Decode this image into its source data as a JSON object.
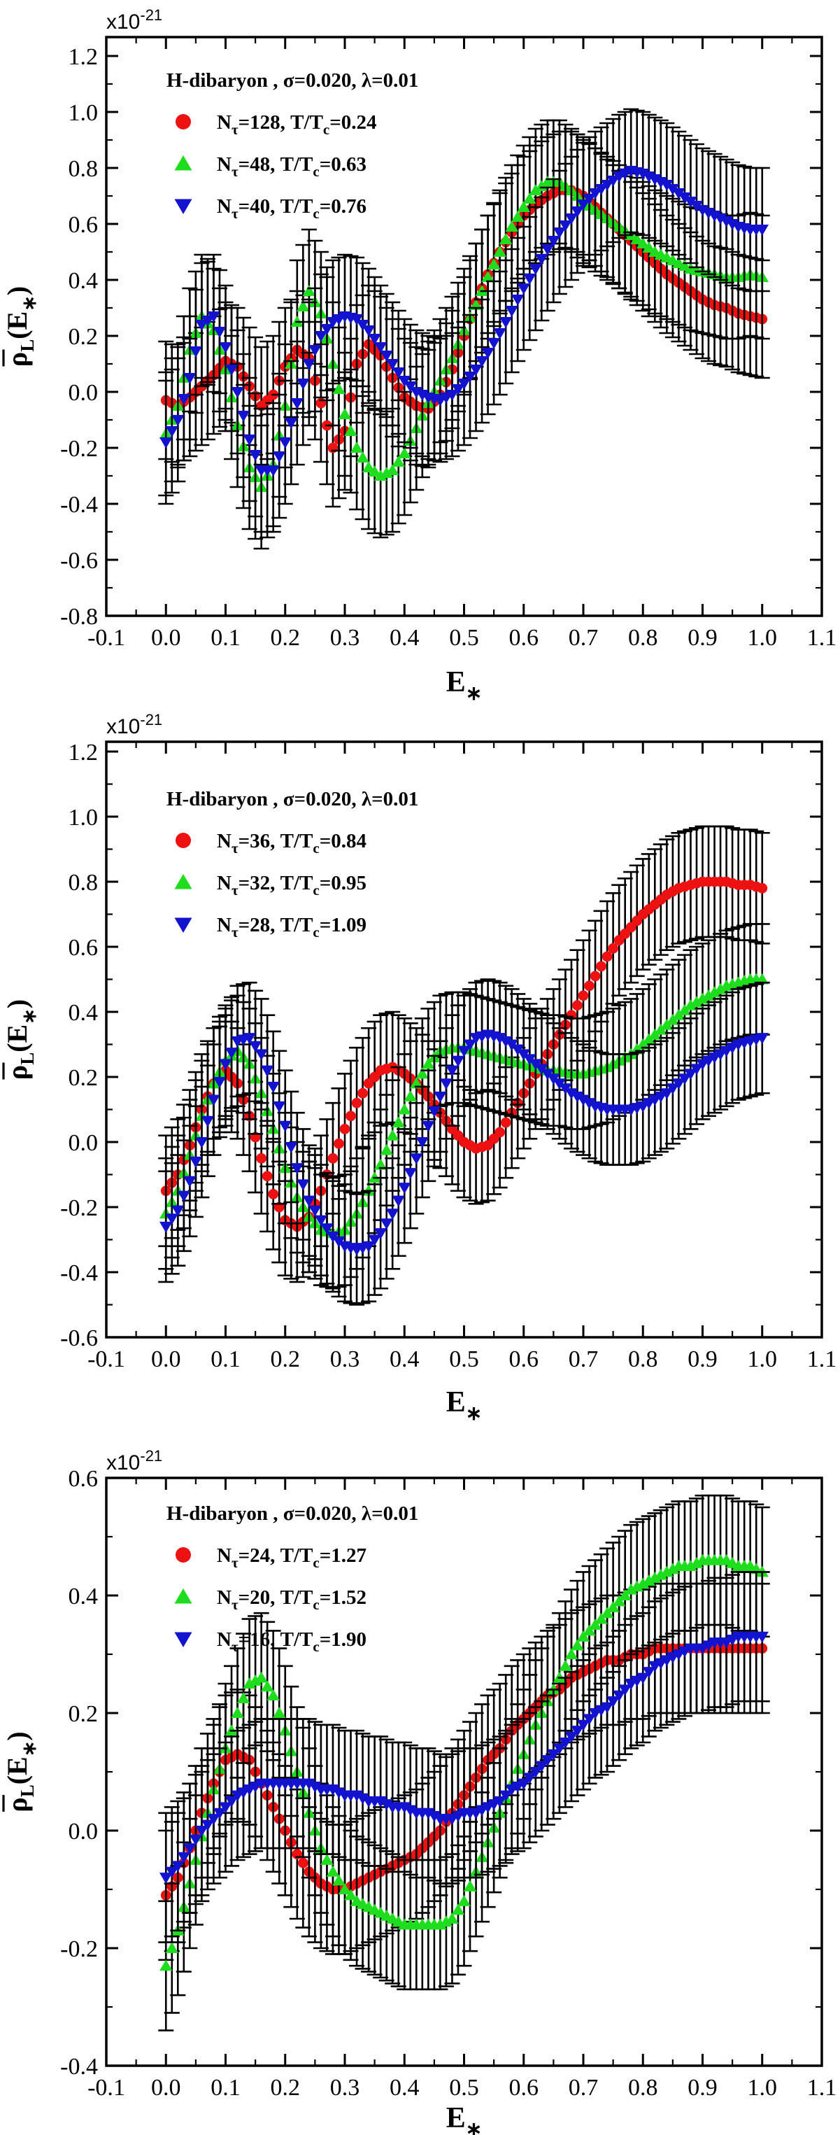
{
  "figure": {
    "scale_label": "x10",
    "scale_exponent": "-21",
    "x_axis_letter": "E",
    "x_axis_subscript": "∗",
    "y_axis_rho": "ρ",
    "y_axis_sub": "L",
    "y_axis_open": "(E",
    "y_axis_argsub": "∗",
    "y_axis_close": ")",
    "colors": {
      "red": "#ee1111",
      "green": "#1ddd1d",
      "blue": "#1212cf",
      "axis": "#000000"
    }
  },
  "chart_data": [
    {
      "type": "scatter",
      "title": "H-dibaryon , σ=0.020,  λ=0.01",
      "xlabel": "E∗",
      "ylabel": "ρ̄L(E∗)",
      "xlim": [
        -0.1,
        1.1
      ],
      "ylim": [
        -0.8,
        1.27
      ],
      "xtick_labels": [
        "-0.1",
        "0.0",
        "0.1",
        "0.2",
        "0.3",
        "0.4",
        "0.5",
        "0.6",
        "0.7",
        "0.8",
        "0.9",
        "1.0",
        "1.1"
      ],
      "xticks": [
        -0.1,
        0.0,
        0.1,
        0.2,
        0.3,
        0.4,
        0.5,
        0.6,
        0.7,
        0.8,
        0.9,
        1.0,
        1.1
      ],
      "ytick_labels": [
        "-0.8",
        "-0.6",
        "-0.4",
        "-0.2",
        "0.0",
        "0.2",
        "0.4",
        "0.6",
        "0.8",
        "1.0",
        "1.2"
      ],
      "yticks": [
        -0.8,
        -0.6,
        -0.4,
        -0.2,
        0.0,
        0.2,
        0.4,
        0.6,
        0.8,
        1.0,
        1.2
      ],
      "x": [
        0,
        0.02,
        0.04,
        0.06,
        0.08,
        0.1,
        0.12,
        0.14,
        0.16,
        0.18,
        0.2,
        0.22,
        0.24,
        0.26,
        0.28,
        0.3,
        0.32,
        0.34,
        0.36,
        0.38,
        0.4,
        0.42,
        0.44,
        0.46,
        0.48,
        0.5,
        0.52,
        0.54,
        0.56,
        0.58,
        0.6,
        0.62,
        0.64,
        0.66,
        0.68,
        0.7,
        0.72,
        0.74,
        0.76,
        0.78,
        0.8,
        0.82,
        0.84,
        0.86,
        0.88,
        0.9,
        0.92,
        0.94,
        0.96,
        0.98,
        1.0
      ],
      "series": [
        {
          "name": "Nτ=128, T/Tc=0.24",
          "n_tau": "128",
          "t_ratio": "0.24",
          "marker": "circle",
          "color": "#ee1111",
          "err": 0.21,
          "y": [
            -0.03,
            -0.05,
            -0.02,
            0.02,
            0.06,
            0.11,
            0.09,
            0.02,
            -0.05,
            -0.01,
            0.09,
            0.15,
            0.12,
            -0.04,
            -0.2,
            -0.14,
            0.1,
            0.17,
            0.13,
            0.05,
            -0.02,
            -0.05,
            -0.06,
            -0.01,
            0.08,
            0.2,
            0.32,
            0.42,
            0.5,
            0.57,
            0.63,
            0.67,
            0.7,
            0.72,
            0.72,
            0.7,
            0.66,
            0.62,
            0.58,
            0.54,
            0.5,
            0.46,
            0.42,
            0.39,
            0.36,
            0.33,
            0.31,
            0.3,
            0.28,
            0.27,
            0.26
          ]
        },
        {
          "name": "Nτ=48, T/Tc=0.63",
          "n_tau": "48",
          "t_ratio": "0.63",
          "marker": "triangle-up",
          "color": "#1ddd1d",
          "err": 0.22,
          "y": [
            -0.15,
            -0.05,
            0.15,
            0.27,
            0.22,
            0.08,
            -0.12,
            -0.27,
            -0.34,
            -0.26,
            -0.05,
            0.25,
            0.36,
            0.28,
            0.1,
            -0.08,
            -0.2,
            -0.27,
            -0.3,
            -0.28,
            -0.22,
            -0.13,
            -0.04,
            0.04,
            0.12,
            0.22,
            0.31,
            0.41,
            0.5,
            0.59,
            0.66,
            0.72,
            0.75,
            0.75,
            0.72,
            0.68,
            0.65,
            0.62,
            0.59,
            0.56,
            0.53,
            0.5,
            0.48,
            0.46,
            0.44,
            0.43,
            0.42,
            0.41,
            0.41,
            0.42,
            0.41
          ]
        },
        {
          "name": "Nτ=40, T/Tc=0.76",
          "n_tau": "40",
          "t_ratio": "0.76",
          "marker": "triangle-down",
          "color": "#1212cf",
          "err": 0.22,
          "y": [
            -0.18,
            -0.1,
            0.05,
            0.24,
            0.27,
            0.16,
            0.0,
            -0.17,
            -0.28,
            -0.28,
            -0.18,
            -0.04,
            0.1,
            0.2,
            0.25,
            0.27,
            0.26,
            0.22,
            0.16,
            0.1,
            0.04,
            0.0,
            -0.02,
            -0.03,
            -0.01,
            0.03,
            0.08,
            0.14,
            0.21,
            0.29,
            0.37,
            0.44,
            0.51,
            0.57,
            0.62,
            0.67,
            0.71,
            0.74,
            0.77,
            0.79,
            0.78,
            0.76,
            0.74,
            0.71,
            0.68,
            0.65,
            0.63,
            0.61,
            0.59,
            0.58,
            0.58
          ]
        }
      ]
    },
    {
      "type": "scatter",
      "title": "H-dibaryon , σ=0.020,  λ=0.01",
      "xlabel": "E∗",
      "ylabel": "ρ̄L(E∗)",
      "xlim": [
        -0.1,
        1.1
      ],
      "ylim": [
        -0.6,
        1.23
      ],
      "xtick_labels": [
        "-0.1",
        "0.0",
        "0.1",
        "0.2",
        "0.3",
        "0.4",
        "0.5",
        "0.6",
        "0.7",
        "0.8",
        "0.9",
        "1.0",
        "1.1"
      ],
      "xticks": [
        -0.1,
        0.0,
        0.1,
        0.2,
        0.3,
        0.4,
        0.5,
        0.6,
        0.7,
        0.8,
        0.9,
        1.0,
        1.1
      ],
      "ytick_labels": [
        "-0.6",
        "-0.4",
        "-0.2",
        "0.0",
        "0.2",
        "0.4",
        "0.6",
        "0.8",
        "1.0",
        "1.2"
      ],
      "yticks": [
        -0.6,
        -0.4,
        -0.2,
        0.0,
        0.2,
        0.4,
        0.6,
        0.8,
        1.0,
        1.2
      ],
      "x": [
        0,
        0.02,
        0.04,
        0.06,
        0.08,
        0.1,
        0.12,
        0.14,
        0.16,
        0.18,
        0.2,
        0.22,
        0.24,
        0.26,
        0.28,
        0.3,
        0.32,
        0.34,
        0.36,
        0.38,
        0.4,
        0.42,
        0.44,
        0.46,
        0.48,
        0.5,
        0.52,
        0.54,
        0.56,
        0.58,
        0.6,
        0.62,
        0.64,
        0.66,
        0.68,
        0.7,
        0.72,
        0.74,
        0.76,
        0.78,
        0.8,
        0.82,
        0.84,
        0.86,
        0.88,
        0.9,
        0.92,
        0.94,
        0.96,
        0.98,
        1.0
      ],
      "series": [
        {
          "name": "Nτ=36, T/Tc=0.84",
          "n_tau": "36",
          "t_ratio": "0.84",
          "marker": "circle",
          "color": "#ee1111",
          "err": 0.17,
          "y": [
            -0.15,
            -0.1,
            -0.01,
            0.1,
            0.18,
            0.22,
            0.18,
            0.08,
            -0.05,
            -0.16,
            -0.24,
            -0.26,
            -0.23,
            -0.15,
            -0.05,
            0.04,
            0.12,
            0.18,
            0.22,
            0.23,
            0.21,
            0.18,
            0.14,
            0.09,
            0.04,
            0.0,
            -0.02,
            -0.01,
            0.03,
            0.09,
            0.15,
            0.21,
            0.27,
            0.33,
            0.39,
            0.45,
            0.51,
            0.57,
            0.62,
            0.66,
            0.7,
            0.73,
            0.76,
            0.78,
            0.79,
            0.8,
            0.8,
            0.8,
            0.79,
            0.79,
            0.78
          ]
        },
        {
          "name": "Nτ=32, T/Tc=0.95",
          "n_tau": "32",
          "t_ratio": "0.95",
          "marker": "triangle-up",
          "color": "#1ddd1d",
          "err": 0.17,
          "y": [
            -0.22,
            -0.15,
            -0.04,
            0.08,
            0.18,
            0.25,
            0.28,
            0.24,
            0.15,
            0.04,
            -0.08,
            -0.17,
            -0.23,
            -0.27,
            -0.28,
            -0.27,
            -0.22,
            -0.15,
            -0.07,
            0.02,
            0.1,
            0.18,
            0.24,
            0.28,
            0.29,
            0.29,
            0.28,
            0.27,
            0.26,
            0.25,
            0.24,
            0.23,
            0.22,
            0.22,
            0.21,
            0.21,
            0.22,
            0.23,
            0.25,
            0.27,
            0.3,
            0.33,
            0.36,
            0.39,
            0.42,
            0.44,
            0.46,
            0.48,
            0.49,
            0.5,
            0.5
          ]
        },
        {
          "name": "Nτ=28, T/Tc=1.09",
          "n_tau": "28",
          "t_ratio": "1.09",
          "marker": "triangle-down",
          "color": "#1212cf",
          "err": 0.17,
          "y": [
            -0.26,
            -0.21,
            -0.12,
            0.0,
            0.13,
            0.24,
            0.31,
            0.32,
            0.27,
            0.17,
            0.05,
            -0.08,
            -0.18,
            -0.24,
            -0.29,
            -0.32,
            -0.33,
            -0.32,
            -0.28,
            -0.22,
            -0.14,
            -0.05,
            0.05,
            0.14,
            0.22,
            0.28,
            0.32,
            0.33,
            0.32,
            0.3,
            0.27,
            0.24,
            0.21,
            0.18,
            0.15,
            0.13,
            0.11,
            0.1,
            0.1,
            0.1,
            0.11,
            0.13,
            0.15,
            0.18,
            0.21,
            0.24,
            0.26,
            0.28,
            0.3,
            0.31,
            0.32
          ]
        }
      ]
    },
    {
      "type": "scatter",
      "title": "H-dibaryon , σ=0.020,  λ=0.01",
      "xlabel": "E∗",
      "ylabel": "ρ̄L(E∗)",
      "xlim": [
        -0.1,
        1.1
      ],
      "ylim": [
        -0.4,
        0.6
      ],
      "xtick_labels": [
        "-0.1",
        "0.0",
        "0.1",
        "0.2",
        "0.3",
        "0.4",
        "0.5",
        "0.6",
        "0.7",
        "0.8",
        "0.9",
        "1.0",
        "1.1"
      ],
      "xticks": [
        -0.1,
        0.0,
        0.1,
        0.2,
        0.3,
        0.4,
        0.5,
        0.6,
        0.7,
        0.8,
        0.9,
        1.0,
        1.1
      ],
      "ytick_labels": [
        "-0.4",
        "-0.2",
        "0.0",
        "0.2",
        "0.4",
        "0.6"
      ],
      "yticks": [
        -0.4,
        -0.2,
        0.0,
        0.2,
        0.4,
        0.6
      ],
      "x": [
        0,
        0.02,
        0.04,
        0.06,
        0.08,
        0.1,
        0.12,
        0.14,
        0.16,
        0.18,
        0.2,
        0.22,
        0.24,
        0.26,
        0.28,
        0.3,
        0.32,
        0.34,
        0.36,
        0.38,
        0.4,
        0.42,
        0.44,
        0.46,
        0.48,
        0.5,
        0.52,
        0.54,
        0.56,
        0.58,
        0.6,
        0.62,
        0.64,
        0.66,
        0.68,
        0.7,
        0.72,
        0.74,
        0.76,
        0.78,
        0.8,
        0.82,
        0.84,
        0.86,
        0.88,
        0.9,
        0.92,
        0.94,
        0.96,
        0.98,
        1.0
      ],
      "series": [
        {
          "name": "Nτ=24, T/Tc=1.27",
          "n_tau": "24",
          "t_ratio": "1.27",
          "marker": "circle",
          "color": "#ee1111",
          "err": 0.11,
          "y": [
            -0.11,
            -0.08,
            -0.03,
            0.03,
            0.08,
            0.12,
            0.13,
            0.12,
            0.08,
            0.04,
            0.0,
            -0.04,
            -0.07,
            -0.09,
            -0.1,
            -0.1,
            -0.09,
            -0.08,
            -0.07,
            -0.06,
            -0.05,
            -0.04,
            -0.02,
            0.0,
            0.03,
            0.06,
            0.09,
            0.12,
            0.14,
            0.17,
            0.19,
            0.21,
            0.23,
            0.24,
            0.26,
            0.27,
            0.28,
            0.29,
            0.29,
            0.3,
            0.3,
            0.31,
            0.31,
            0.31,
            0.31,
            0.31,
            0.31,
            0.31,
            0.31,
            0.31,
            0.31
          ]
        },
        {
          "name": "Nτ=20, T/Tc=1.52",
          "n_tau": "20",
          "t_ratio": "1.52",
          "marker": "triangle-up",
          "color": "#1ddd1d",
          "err": 0.11,
          "y": [
            -0.23,
            -0.17,
            -0.09,
            -0.01,
            0.07,
            0.14,
            0.2,
            0.25,
            0.26,
            0.23,
            0.17,
            0.1,
            0.03,
            -0.03,
            -0.07,
            -0.1,
            -0.12,
            -0.13,
            -0.14,
            -0.15,
            -0.16,
            -0.16,
            -0.16,
            -0.16,
            -0.15,
            -0.12,
            -0.07,
            -0.02,
            0.03,
            0.08,
            0.13,
            0.18,
            0.22,
            0.26,
            0.3,
            0.33,
            0.35,
            0.37,
            0.39,
            0.41,
            0.42,
            0.43,
            0.44,
            0.45,
            0.45,
            0.46,
            0.46,
            0.46,
            0.45,
            0.45,
            0.44
          ]
        },
        {
          "name": "Nτ=16, T/Tc=1.90",
          "n_tau": "16",
          "t_ratio": "1.90",
          "marker": "triangle-down",
          "color": "#1212cf",
          "err": 0.11,
          "y": [
            -0.08,
            -0.06,
            -0.03,
            0.0,
            0.02,
            0.04,
            0.06,
            0.07,
            0.08,
            0.08,
            0.08,
            0.08,
            0.08,
            0.07,
            0.07,
            0.06,
            0.06,
            0.05,
            0.05,
            0.04,
            0.04,
            0.03,
            0.03,
            0.02,
            0.02,
            0.03,
            0.03,
            0.04,
            0.05,
            0.07,
            0.08,
            0.1,
            0.12,
            0.14,
            0.16,
            0.18,
            0.2,
            0.21,
            0.23,
            0.25,
            0.26,
            0.28,
            0.29,
            0.3,
            0.31,
            0.31,
            0.32,
            0.32,
            0.33,
            0.33,
            0.33
          ]
        }
      ]
    }
  ]
}
